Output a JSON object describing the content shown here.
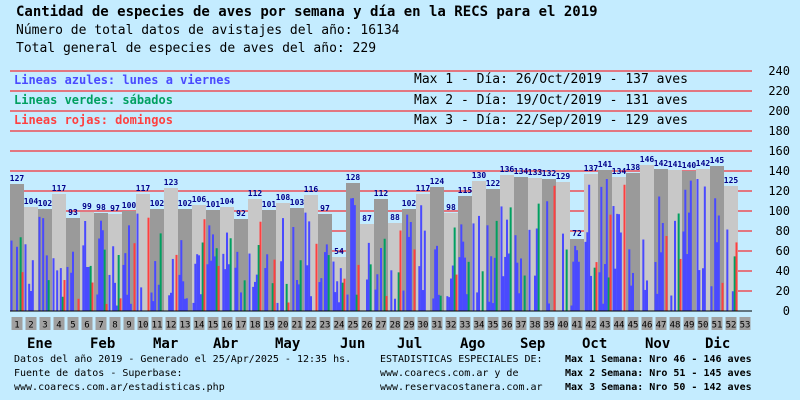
{
  "header": {
    "title": "Cantidad de especies de aves por semana y día en la RECS para el 2019",
    "line2": "Número de total datos de avistajes del año: 16134",
    "line3": " Total general de especies de aves del año: 229"
  },
  "legend": {
    "blue": "Lineas azules: lunes a viernes",
    "green": "Lineas verdes: sábados",
    "red": "Lineas rojas:  domingos",
    "blue_color": "#4a4aff",
    "green_color": "#00a060",
    "red_color": "#ff4040"
  },
  "max_days": [
    "Max 1 - Día: 26/Oct/2019 - 137 aves",
    "Max 2 - Día: 19/Oct/2019 - 131 aves",
    "Max 3 - Día: 22/Sep/2019 - 129 aves"
  ],
  "footer": {
    "left1": "Datos del año 2019 - Generado el 25/Apr/2025 - 12:35 hs.",
    "left2": "Fuente de datos - Superbase:",
    "left3": "www.coarecs.com.ar/estadisticas.php",
    "mid1": "ESTADISTICAS ESPECIALES DE:",
    "mid2": "www.coarecs.com.ar y de",
    "mid3": "www.reservacostanera.com.ar",
    "right1": "Max 1 Semana: Nro 46 - 146 aves",
    "right2": "Max 2 Semana: Nro 51 - 145 aves",
    "right3": "Max 3 Semana: Nro 50 - 142 aves"
  },
  "chart_data": {
    "type": "bar",
    "y_ticks": [
      0,
      20,
      40,
      60,
      80,
      100,
      120,
      140,
      160,
      180,
      200,
      220,
      240
    ],
    "ylim": [
      0,
      240
    ],
    "grid_color": "#ff0000",
    "months": [
      "Ene",
      "Feb",
      "Mar",
      "Abr",
      "May",
      "Jun",
      "Jul",
      "Ago",
      "Sep",
      "Oct",
      "Nov",
      "Dic"
    ],
    "weeks": [
      "1",
      "2",
      "3",
      "4",
      "5",
      "6",
      "7",
      "8",
      "9",
      "10",
      "11",
      "12",
      "13",
      "14",
      "15",
      "16",
      "17",
      "18",
      "19",
      "20",
      "21",
      "22",
      "23",
      "24",
      "25",
      "26",
      "27",
      "28",
      "29",
      "30",
      "31",
      "32",
      "33",
      "34",
      "35",
      "36",
      "37",
      "38",
      "39",
      "40",
      "41",
      "42",
      "43",
      "44",
      "45",
      "46",
      "47",
      "48",
      "49",
      "50",
      "51",
      "52",
      "53"
    ],
    "week_values": [
      127,
      104,
      102,
      117,
      93,
      99,
      98,
      97,
      100,
      117,
      102,
      123,
      102,
      106,
      101,
      104,
      92,
      112,
      101,
      108,
      103,
      116,
      97,
      54,
      128,
      87,
      112,
      88,
      102,
      117,
      124,
      98,
      115,
      130,
      122,
      136,
      134,
      133,
      132,
      129,
      72,
      137,
      141,
      134,
      138,
      146,
      142,
      141,
      140,
      142,
      145,
      125,
      null
    ]
  }
}
